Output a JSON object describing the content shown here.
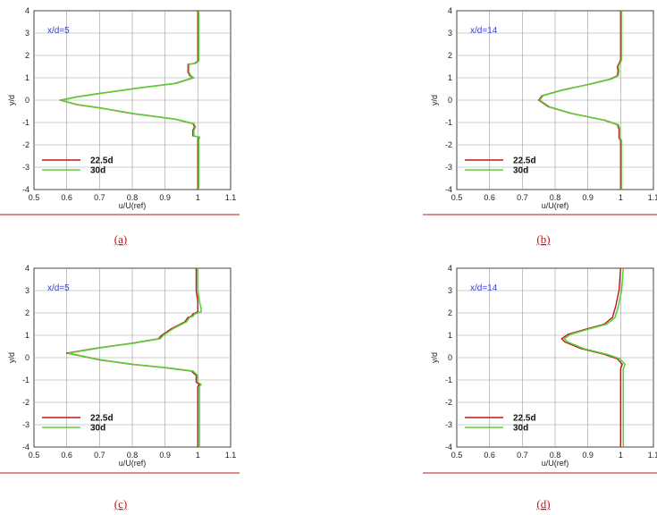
{
  "colors": {
    "series_a": "#c0151d",
    "series_b": "#5ccf3a",
    "annotation": "#3b3bd9",
    "caption": "#c0151d",
    "grid": "#999999"
  },
  "chart_data": [
    {
      "type": "line",
      "caption": "(a)",
      "annotation": "x/d=5",
      "xlabel": "u/U(ref)",
      "ylabel": "y/d",
      "xlim": [
        0.5,
        1.1
      ],
      "ylim": [
        -4,
        4
      ],
      "xticks": [
        "0.5",
        "0.6",
        "0.7",
        "0.8",
        "0.9",
        "1",
        "1.1"
      ],
      "yticks": [
        "-4",
        "-3",
        "-2",
        "-1",
        "0",
        "1",
        "2",
        "3",
        "4"
      ],
      "grid": true,
      "legend": "bottom-left",
      "series": [
        {
          "name": "22.5d",
          "points": [
            [
              1.0,
              -4
            ],
            [
              1.0,
              -1.75
            ],
            [
              1.003,
              -1.65
            ],
            [
              0.985,
              -1.6
            ],
            [
              0.985,
              -1.35
            ],
            [
              0.99,
              -1.2
            ],
            [
              0.985,
              -1.05
            ],
            [
              0.93,
              -0.85
            ],
            [
              0.8,
              -0.6
            ],
            [
              0.7,
              -0.35
            ],
            [
              0.63,
              -0.2
            ],
            [
              0.58,
              0.0
            ],
            [
              0.63,
              0.15
            ],
            [
              0.7,
              0.3
            ],
            [
              0.82,
              0.55
            ],
            [
              0.93,
              0.75
            ],
            [
              0.985,
              1.0
            ],
            [
              0.975,
              1.1
            ],
            [
              0.97,
              1.25
            ],
            [
              0.97,
              1.6
            ],
            [
              0.99,
              1.65
            ],
            [
              1.0,
              1.75
            ],
            [
              1.0,
              4
            ]
          ]
        },
        {
          "name": "30d",
          "points": [
            [
              1.003,
              -4
            ],
            [
              1.003,
              -1.75
            ],
            [
              1.006,
              -1.65
            ],
            [
              0.988,
              -1.6
            ],
            [
              0.988,
              -1.35
            ],
            [
              0.993,
              -1.2
            ],
            [
              0.988,
              -1.05
            ],
            [
              0.933,
              -0.85
            ],
            [
              0.803,
              -0.6
            ],
            [
              0.703,
              -0.35
            ],
            [
              0.633,
              -0.2
            ],
            [
              0.583,
              0.0
            ],
            [
              0.633,
              0.15
            ],
            [
              0.703,
              0.3
            ],
            [
              0.823,
              0.55
            ],
            [
              0.933,
              0.75
            ],
            [
              0.988,
              1.0
            ],
            [
              0.978,
              1.1
            ],
            [
              0.973,
              1.25
            ],
            [
              0.973,
              1.6
            ],
            [
              0.993,
              1.65
            ],
            [
              1.003,
              1.75
            ],
            [
              1.003,
              4
            ]
          ]
        }
      ]
    },
    {
      "type": "line",
      "caption": "(b)",
      "annotation": "x/d=14",
      "xlabel": "u/U(ref)",
      "ylabel": "y/d",
      "xlim": [
        0.5,
        1.1
      ],
      "ylim": [
        -4,
        4
      ],
      "xticks": [
        "0.5",
        "0.6",
        "0.7",
        "0.8",
        "0.9",
        "1",
        "1.1"
      ],
      "yticks": [
        "-4",
        "-3",
        "-2",
        "-1",
        "0",
        "1",
        "2",
        "3",
        "4"
      ],
      "grid": true,
      "legend": "bottom-left",
      "series": [
        {
          "name": "22.5d",
          "points": [
            [
              1.0,
              -4
            ],
            [
              1.0,
              -1.8
            ],
            [
              0.995,
              -1.7
            ],
            [
              0.995,
              -1.3
            ],
            [
              0.99,
              -1.1
            ],
            [
              0.95,
              -0.9
            ],
            [
              0.85,
              -0.6
            ],
            [
              0.78,
              -0.3
            ],
            [
              0.75,
              0.0
            ],
            [
              0.76,
              0.2
            ],
            [
              0.82,
              0.45
            ],
            [
              0.9,
              0.7
            ],
            [
              0.97,
              0.95
            ],
            [
              0.99,
              1.1
            ],
            [
              0.992,
              1.3
            ],
            [
              0.99,
              1.5
            ],
            [
              1.0,
              1.8
            ],
            [
              1.0,
              4
            ]
          ]
        },
        {
          "name": "30d",
          "points": [
            [
              1.003,
              -4
            ],
            [
              1.003,
              -1.8
            ],
            [
              0.998,
              -1.7
            ],
            [
              0.998,
              -1.3
            ],
            [
              0.993,
              -1.1
            ],
            [
              0.953,
              -0.9
            ],
            [
              0.853,
              -0.6
            ],
            [
              0.783,
              -0.3
            ],
            [
              0.753,
              0.0
            ],
            [
              0.763,
              0.2
            ],
            [
              0.823,
              0.45
            ],
            [
              0.903,
              0.7
            ],
            [
              0.973,
              0.95
            ],
            [
              0.993,
              1.1
            ],
            [
              0.995,
              1.3
            ],
            [
              0.993,
              1.5
            ],
            [
              1.003,
              1.8
            ],
            [
              1.003,
              4
            ]
          ]
        }
      ]
    },
    {
      "type": "line",
      "caption": "(c)",
      "annotation": "x/d=5",
      "xlabel": "u/U(ref)",
      "ylabel": "y/d",
      "xlim": [
        0.5,
        1.1
      ],
      "ylim": [
        -4,
        4
      ],
      "xticks": [
        "0.5",
        "0.6",
        "0.7",
        "0.8",
        "0.9",
        "1",
        "1.1"
      ],
      "yticks": [
        "-4",
        "-3",
        "-2",
        "-1",
        "0",
        "1",
        "2",
        "3",
        "4"
      ],
      "grid": true,
      "legend": "bottom-left",
      "series": [
        {
          "name": "22.5d",
          "points": [
            [
              1.0,
              -4
            ],
            [
              1.0,
              -1.3
            ],
            [
              1.005,
              -1.2
            ],
            [
              0.995,
              -1.1
            ],
            [
              0.995,
              -0.8
            ],
            [
              0.98,
              -0.6
            ],
            [
              0.9,
              -0.45
            ],
            [
              0.8,
              -0.3
            ],
            [
              0.7,
              -0.1
            ],
            [
              0.6,
              0.2
            ],
            [
              0.7,
              0.45
            ],
            [
              0.8,
              0.65
            ],
            [
              0.88,
              0.85
            ],
            [
              0.89,
              1.0
            ],
            [
              0.92,
              1.3
            ],
            [
              0.96,
              1.6
            ],
            [
              0.97,
              1.8
            ],
            [
              0.98,
              1.85
            ],
            [
              0.985,
              1.95
            ],
            [
              1.0,
              2.05
            ],
            [
              1.0,
              2.2
            ],
            [
              1.0,
              2.5
            ],
            [
              0.995,
              3.0
            ],
            [
              0.995,
              4
            ]
          ]
        },
        {
          "name": "30d",
          "points": [
            [
              1.005,
              -4
            ],
            [
              1.005,
              -1.3
            ],
            [
              1.01,
              -1.2
            ],
            [
              1.0,
              -1.1
            ],
            [
              1.0,
              -0.8
            ],
            [
              0.985,
              -0.6
            ],
            [
              0.905,
              -0.45
            ],
            [
              0.805,
              -0.3
            ],
            [
              0.705,
              -0.1
            ],
            [
              0.605,
              0.2
            ],
            [
              0.705,
              0.45
            ],
            [
              0.805,
              0.65
            ],
            [
              0.885,
              0.85
            ],
            [
              0.895,
              1.0
            ],
            [
              0.925,
              1.3
            ],
            [
              0.965,
              1.6
            ],
            [
              0.975,
              1.8
            ],
            [
              0.985,
              1.85
            ],
            [
              0.99,
              1.95
            ],
            [
              1.01,
              2.05
            ],
            [
              1.01,
              2.2
            ],
            [
              1.005,
              2.5
            ],
            [
              1.0,
              3.0
            ],
            [
              1.0,
              4
            ]
          ]
        }
      ]
    },
    {
      "type": "line",
      "caption": "(d)",
      "annotation": "x/d=14",
      "xlabel": "u/U(ref)",
      "ylabel": "y/d",
      "xlim": [
        0.5,
        1.1
      ],
      "ylim": [
        -4,
        4
      ],
      "xticks": [
        "0.5",
        "0.6",
        "0.7",
        "0.8",
        "0.9",
        "1",
        "1.1"
      ],
      "yticks": [
        "-4",
        "-3",
        "-2",
        "-1",
        "0",
        "1",
        "2",
        "3",
        "4"
      ],
      "grid": true,
      "legend": "bottom-left",
      "series": [
        {
          "name": "22.5d",
          "points": [
            [
              1.0,
              -4
            ],
            [
              1.0,
              -0.5
            ],
            [
              1.005,
              -0.3
            ],
            [
              0.99,
              -0.05
            ],
            [
              0.95,
              0.15
            ],
            [
              0.88,
              0.4
            ],
            [
              0.83,
              0.7
            ],
            [
              0.82,
              0.85
            ],
            [
              0.84,
              1.05
            ],
            [
              0.9,
              1.3
            ],
            [
              0.95,
              1.5
            ],
            [
              0.975,
              1.8
            ],
            [
              0.985,
              2.3
            ],
            [
              0.995,
              3.0
            ],
            [
              1.0,
              4
            ]
          ]
        },
        {
          "name": "30d",
          "points": [
            [
              1.008,
              -4
            ],
            [
              1.008,
              -0.5
            ],
            [
              1.013,
              -0.3
            ],
            [
              0.998,
              -0.05
            ],
            [
              0.958,
              0.15
            ],
            [
              0.888,
              0.4
            ],
            [
              0.838,
              0.7
            ],
            [
              0.828,
              0.85
            ],
            [
              0.848,
              1.05
            ],
            [
              0.908,
              1.3
            ],
            [
              0.958,
              1.5
            ],
            [
              0.983,
              1.8
            ],
            [
              0.993,
              2.3
            ],
            [
              1.003,
              3.0
            ],
            [
              1.008,
              4
            ]
          ]
        }
      ]
    }
  ]
}
